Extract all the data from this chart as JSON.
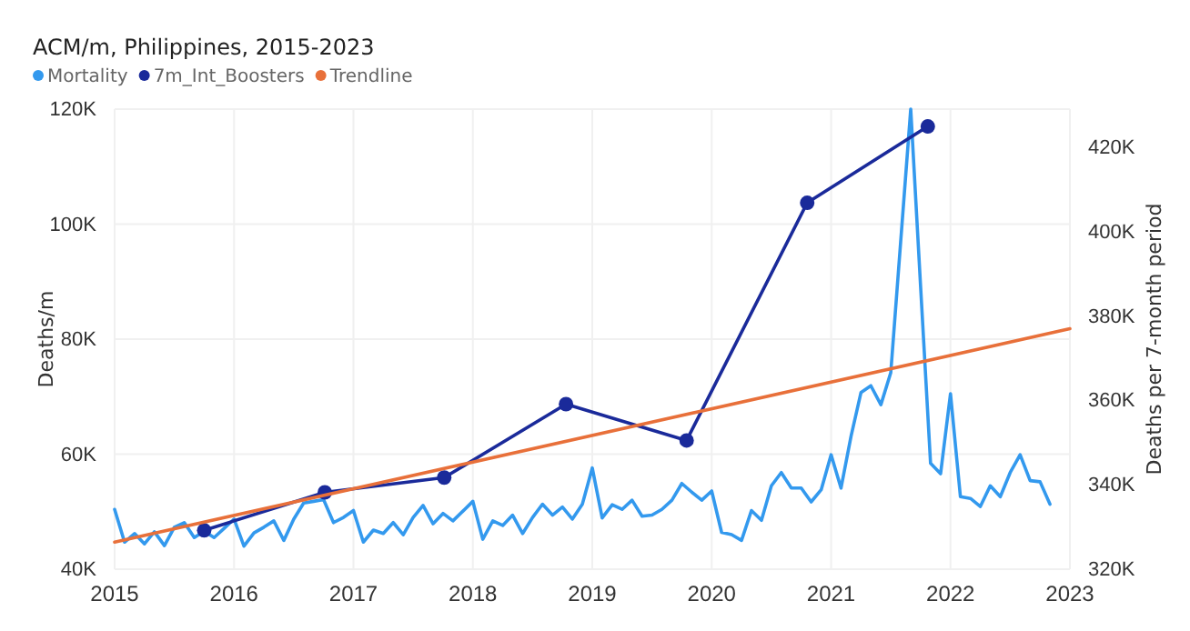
{
  "chart_data": {
    "type": "line",
    "title": "ACM/m, Philippines, 2015-2023",
    "ylabel": "Deaths/m",
    "y2label": "Deaths per 7-month period",
    "xlim": [
      2015,
      2023
    ],
    "xticks": [
      2015,
      2016,
      2017,
      2018,
      2019,
      2020,
      2021,
      2022,
      2023
    ],
    "ylim": [
      40000,
      120000
    ],
    "yticks": [
      {
        "value": 40000,
        "label": "40K"
      },
      {
        "value": 60000,
        "label": "60K"
      },
      {
        "value": 80000,
        "label": "80K"
      },
      {
        "value": 100000,
        "label": "100K"
      },
      {
        "value": 120000,
        "label": "120K"
      }
    ],
    "y2lim": [
      320000,
      429000
    ],
    "y2ticks": [
      {
        "value": 320000,
        "label": "320K"
      },
      {
        "value": 340000,
        "label": "340K"
      },
      {
        "value": 360000,
        "label": "360K"
      },
      {
        "value": 380000,
        "label": "380K"
      },
      {
        "value": 400000,
        "label": "400K"
      },
      {
        "value": 420000,
        "label": "420K"
      }
    ],
    "grid": true,
    "legend": "top left",
    "line_style": "solid",
    "series": [
      {
        "name": "Mortality",
        "color": "#3399ee",
        "marker": "none",
        "x": [
          2015,
          2015.083,
          2015.167,
          2015.25,
          2015.333,
          2015.417,
          2015.5,
          2015.583,
          2015.667,
          2015.75,
          2015.833,
          2015.917,
          2016,
          2016.083,
          2016.167,
          2016.25,
          2016.333,
          2016.417,
          2016.5,
          2016.583,
          2016.667,
          2016.75,
          2016.833,
          2016.917,
          2017,
          2017.083,
          2017.167,
          2017.25,
          2017.333,
          2017.417,
          2017.5,
          2017.583,
          2017.667,
          2017.75,
          2017.833,
          2017.917,
          2018,
          2018.083,
          2018.167,
          2018.25,
          2018.333,
          2018.417,
          2018.5,
          2018.583,
          2018.667,
          2018.75,
          2018.833,
          2018.917,
          2019,
          2019.083,
          2019.167,
          2019.25,
          2019.333,
          2019.417,
          2019.5,
          2019.583,
          2019.667,
          2019.75,
          2019.833,
          2019.917,
          2020,
          2020.083,
          2020.167,
          2020.25,
          2020.333,
          2020.417,
          2020.5,
          2020.583,
          2020.667,
          2020.75,
          2020.833,
          2020.917,
          2021,
          2021.083,
          2021.167,
          2021.25,
          2021.333,
          2021.417,
          2021.5,
          2021.583,
          2021.667,
          2021.75,
          2021.833,
          2021.917,
          2022,
          2022.083,
          2022.167,
          2022.25,
          2022.333,
          2022.417,
          2022.5,
          2022.583,
          2022.667,
          2022.75,
          2022.833
        ],
        "values": [
          50400,
          44700,
          46200,
          44400,
          46500,
          44100,
          47300,
          48100,
          45500,
          46600,
          45500,
          47100,
          48700,
          44000,
          46300,
          47300,
          48400,
          45000,
          48700,
          51500,
          51800,
          52100,
          48100,
          49000,
          50200,
          44700,
          46800,
          46200,
          48100,
          46000,
          49000,
          51100,
          47900,
          49700,
          48400,
          50100,
          51800,
          45200,
          48400,
          47600,
          49400,
          46200,
          49000,
          51300,
          49400,
          50800,
          48700,
          51300,
          57600,
          48900,
          51200,
          50400,
          52000,
          49200,
          49400,
          50400,
          52000,
          54900,
          53400,
          52000,
          53600,
          46400,
          46000,
          45000,
          50200,
          48500,
          54500,
          56800,
          54100,
          54100,
          51700,
          53800,
          59900,
          54100,
          63100,
          70700,
          71900,
          68600,
          74200,
          97000,
          120000,
          89000,
          58400,
          56600,
          70500,
          52600,
          52300,
          50900,
          54500,
          52600,
          56800,
          59900,
          55400,
          55200,
          51300
        ]
      },
      {
        "name": "7m_Int_Boosters",
        "color": "#1a2a9a",
        "marker": "circle",
        "axis": "y2",
        "x": [
          2015.75,
          2016.76,
          2017.76,
          2018.78,
          2019.79,
          2020.8,
          2021.81
        ],
        "values": [
          329200,
          338200,
          341700,
          359100,
          350500,
          406800,
          424900
        ]
      },
      {
        "name": "Trendline",
        "color": "#e8703a",
        "marker": "none",
        "x": [
          2015,
          2023
        ],
        "values": [
          44700,
          81800
        ]
      }
    ]
  }
}
